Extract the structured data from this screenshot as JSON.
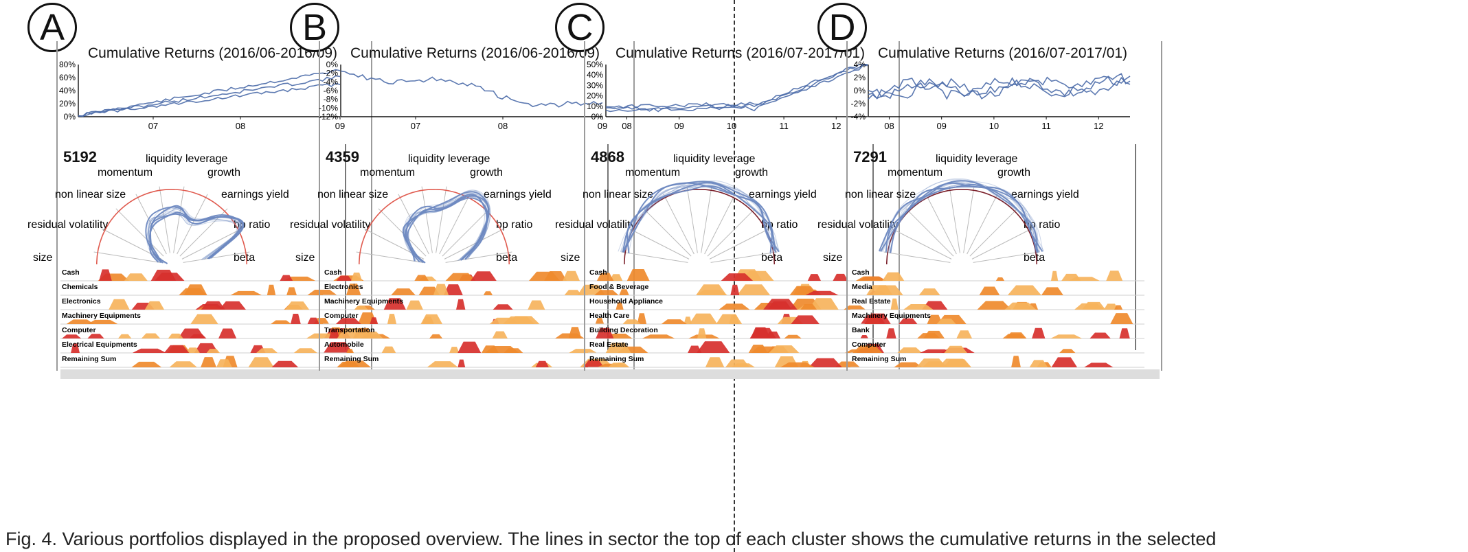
{
  "divider_color": "#333333",
  "caption": "Fig. 4. Various portfolios displayed in the proposed overview. The lines in sector the top of each cluster shows the cumulative returns in the selected",
  "factor_labels": [
    "liquidity",
    "leverage",
    "momentum",
    "growth",
    "non linear size",
    "earnings yield",
    "residual volatility",
    "bp ratio",
    "size",
    "beta"
  ],
  "colors": {
    "line": "#4a6aa8",
    "radar": "#6e89c1",
    "reference_red": "#e05a4e",
    "reference_dark": "#7a1f2a",
    "fill_orange": "#ef8a2d",
    "fill_light": "#f6b35c",
    "fill_red": "#d7302d"
  },
  "panels": [
    {
      "letter": "A",
      "title": "Cumulative Returns (2016/06-2016/09)",
      "count": "5192",
      "y_ticks": [
        "80%",
        "60%",
        "40%",
        "20%",
        "0%"
      ],
      "x_ticks": [
        "07",
        "08",
        "09"
      ],
      "reference_style": "red",
      "industries": [
        "Cash",
        "Chemicals",
        "Electronics",
        "Machinery Equipments",
        "Computer",
        "Electrical Equipments",
        "Remaining Sum"
      ]
    },
    {
      "letter": "B",
      "title": "Cumulative Returns (2016/06-2016/09)",
      "count": "4359",
      "y_ticks": [
        "0%",
        "-2%",
        "-4%",
        "-6%",
        "-8%",
        "-10%",
        "-12%"
      ],
      "x_ticks": [
        "07",
        "08",
        "09"
      ],
      "reference_style": "red",
      "industries": [
        "Cash",
        "Electronics",
        "Machinery Equipments",
        "Computer",
        "Transportation",
        "Automobile",
        "Remaining Sum"
      ]
    },
    {
      "letter": "C",
      "title": "Cumulative Returns (2016/07-2017/01)",
      "count": "4868",
      "y_ticks": [
        "50%",
        "40%",
        "30%",
        "20%",
        "10%",
        "0%"
      ],
      "x_ticks": [
        "08",
        "09",
        "10",
        "11",
        "12"
      ],
      "reference_style": "dark",
      "industries": [
        "Cash",
        "Food & Beverage",
        "Household Appliance",
        "Health Care",
        "Building Decoration",
        "Real Estate",
        "Remaining Sum"
      ]
    },
    {
      "letter": "D",
      "title": "Cumulative Returns (2016/07-2017/01)",
      "count": "7291",
      "y_ticks": [
        "4%",
        "2%",
        "0%",
        "-2%",
        "-4%"
      ],
      "x_ticks": [
        "08",
        "09",
        "10",
        "11",
        "12"
      ],
      "reference_style": "dark",
      "industries": [
        "Cash",
        "Media",
        "Real Estate",
        "Machinery Equipments",
        "Bank",
        "Computer",
        "Remaining Sum"
      ]
    }
  ]
}
